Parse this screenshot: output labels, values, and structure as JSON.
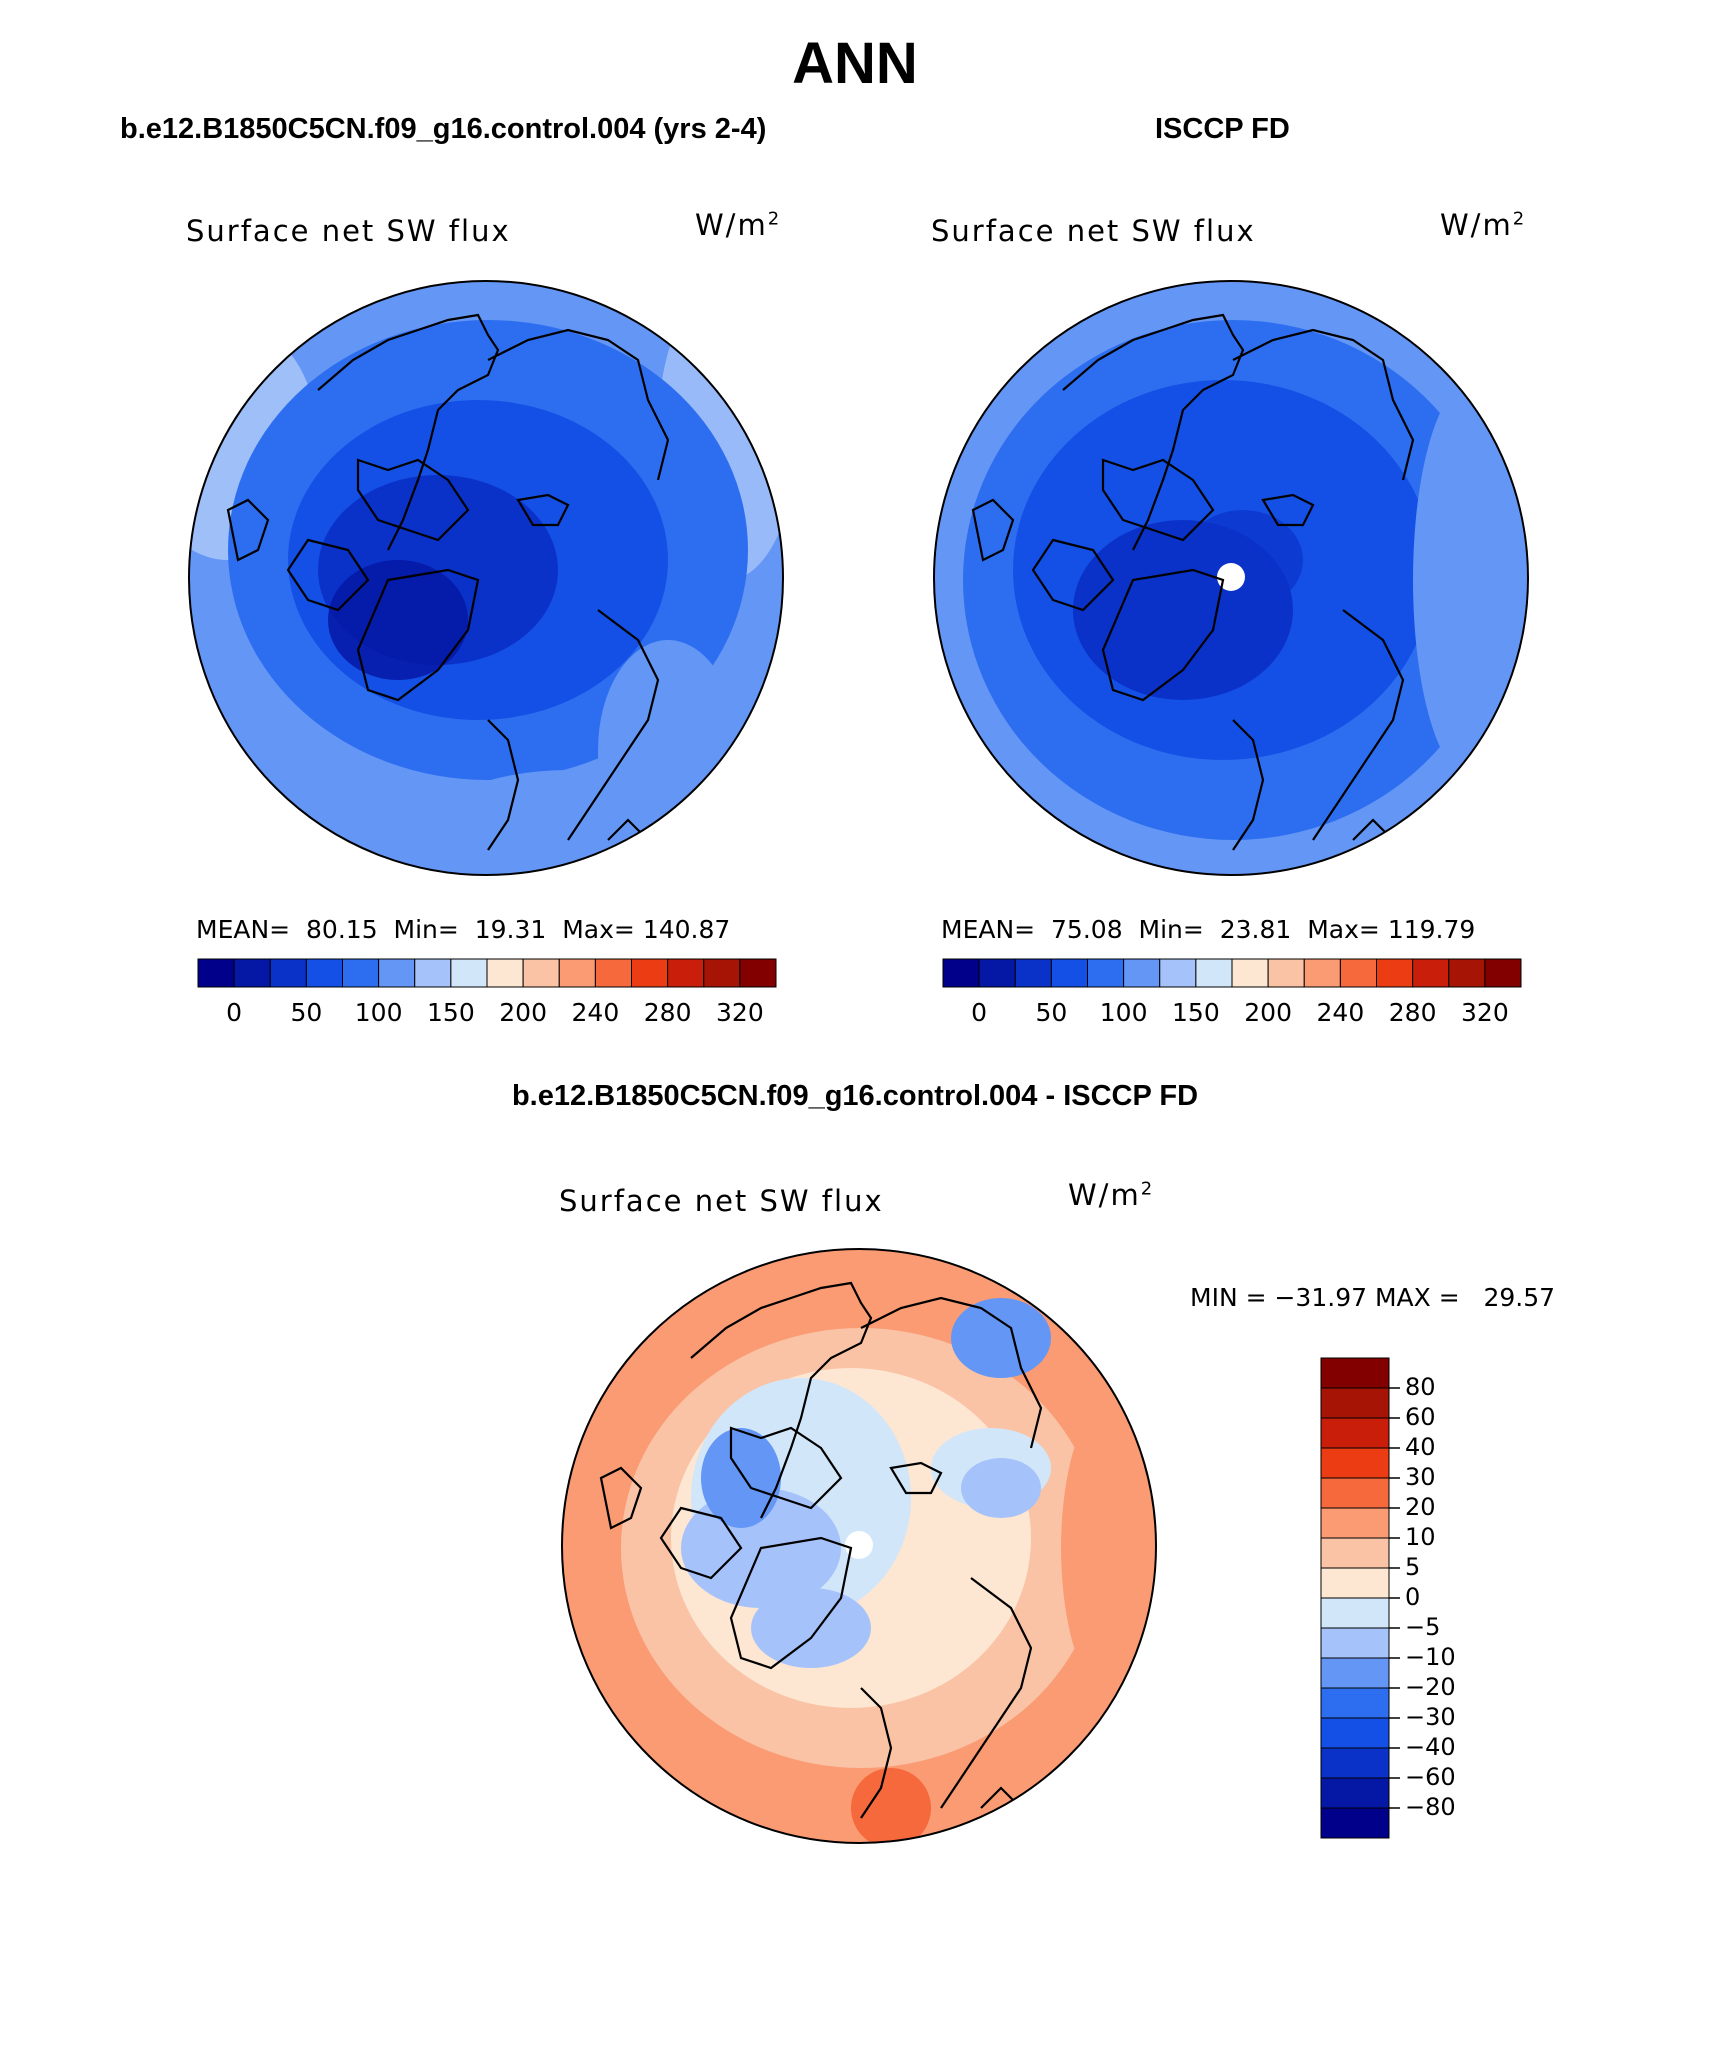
{
  "figure": {
    "title": "ANN"
  },
  "colors": {
    "abs_scale": [
      "#00008b",
      "#0518a5",
      "#0a32c8",
      "#1450e6",
      "#2d6ef0",
      "#6496f5",
      "#a5c3fa",
      "#d2e6fa",
      "#fde6d2",
      "#fac3a5",
      "#fa9b73",
      "#f5693c",
      "#eb3c14",
      "#c81e0a",
      "#a51405",
      "#820000"
    ],
    "diff_scale": [
      "#820000",
      "#a51405",
      "#c81e0a",
      "#eb3c14",
      "#f5693c",
      "#fa9b73",
      "#fac3a5",
      "#fde6d2",
      "#d2e6fa",
      "#a5c3fa",
      "#6496f5",
      "#2d6ef0",
      "#1450e6",
      "#0a32c8",
      "#0518a5",
      "#00008b"
    ]
  },
  "panels": {
    "model": {
      "header": "b.e12.B1850C5CN.f09_g16.control.004 (yrs 2-4)",
      "variable": "Surface net SW flux",
      "units": "W/m",
      "units_sup": "2",
      "stats": {
        "mean_label": "MEAN=",
        "mean": "80.15",
        "min_label": "Min=",
        "min": "19.31",
        "max_label": "Max=",
        "max": "140.87"
      },
      "colorbar_ticks": [
        "0",
        "50",
        "100",
        "150",
        "200",
        "240",
        "280",
        "320"
      ]
    },
    "obs": {
      "header": "ISCCP FD",
      "variable": "Surface net SW flux",
      "units": "W/m",
      "units_sup": "2",
      "stats": {
        "mean_label": "MEAN=",
        "mean": "75.08",
        "min_label": "Min=",
        "min": "23.81",
        "max_label": "Max=",
        "max": "119.79"
      },
      "colorbar_ticks": [
        "0",
        "50",
        "100",
        "150",
        "200",
        "240",
        "280",
        "320"
      ]
    },
    "diff": {
      "header": "b.e12.B1850C5CN.f09_g16.control.004 - ISCCP FD",
      "variable": "Surface net SW flux",
      "units": "W/m",
      "units_sup": "2",
      "minmax": "MIN = −31.97 MAX =   29.57",
      "colorbar_ticks": [
        "80",
        "60",
        "40",
        "30",
        "20",
        "10",
        "5",
        "0",
        "−5",
        "−10",
        "−20",
        "−30",
        "−40",
        "−60",
        "−80"
      ]
    }
  }
}
